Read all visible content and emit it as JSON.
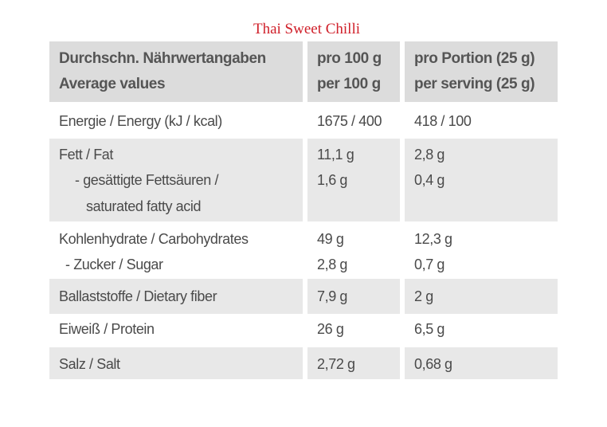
{
  "title": "Thai Sweet Chilli",
  "table": {
    "header": [
      [
        "Durchschn. Nährwertangaben",
        "Average values"
      ],
      [
        "pro 100 g",
        "per 100 g"
      ],
      [
        "pro Portion (25 g)",
        "per serving (25 g)"
      ]
    ],
    "rows": [
      [
        [
          "Energie / Energy (kJ / kcal)"
        ],
        [
          "1675 / 400"
        ],
        [
          "418 / 100"
        ]
      ],
      [
        [
          "Fett / Fat",
          "- gesättigte Fettsäuren /",
          "saturated fatty acid"
        ],
        [
          "11,1 g",
          "1,6 g"
        ],
        [
          "2,8 g",
          "0,4 g"
        ]
      ],
      [
        [
          "Kohlenhydrate / Carbohydrates",
          "- Zucker / Sugar"
        ],
        [
          "49 g",
          "2,8 g"
        ],
        [
          "12,3 g",
          "0,7 g"
        ]
      ],
      [
        [
          "Ballaststoffe / Dietary fiber"
        ],
        [
          "7,9 g"
        ],
        [
          "2 g"
        ]
      ],
      [
        [
          "Eiweiß / Protein"
        ],
        [
          "26 g"
        ],
        [
          "6,5 g"
        ]
      ],
      [
        [
          "Salz / Salt"
        ],
        [
          "2,72 g"
        ],
        [
          "0,68 g"
        ]
      ]
    ]
  }
}
